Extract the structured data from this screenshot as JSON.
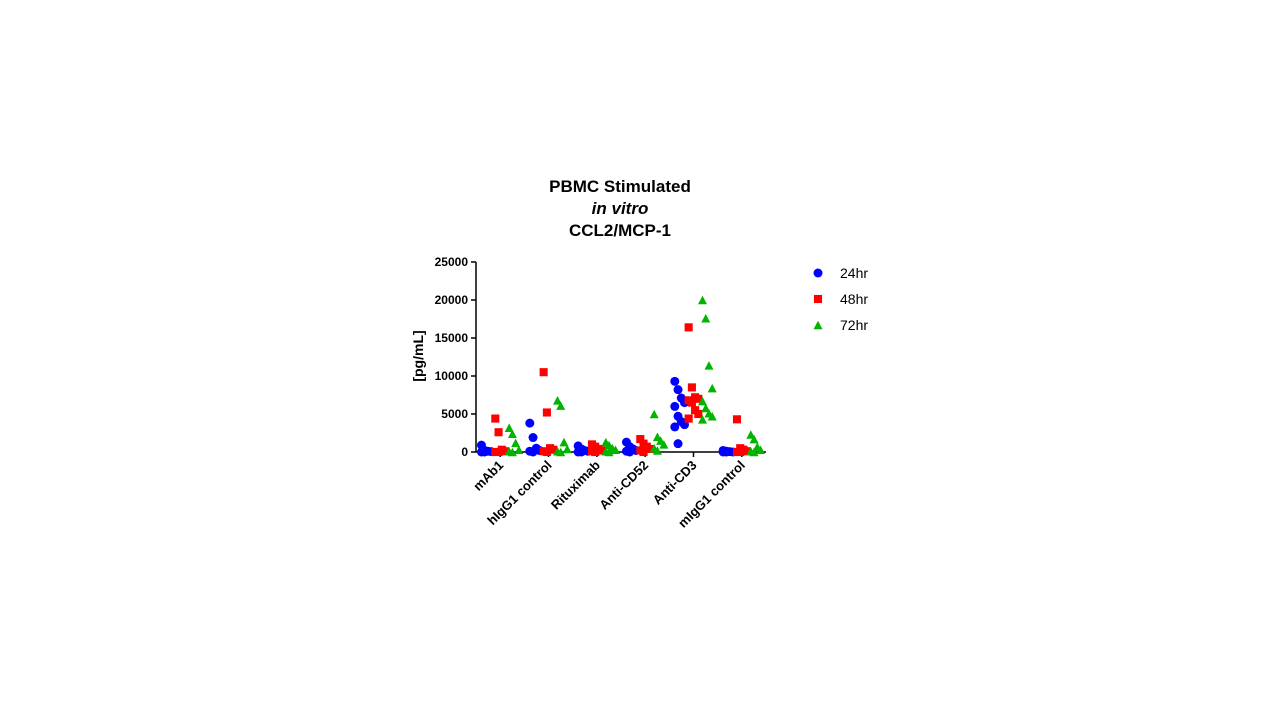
{
  "chart_data": {
    "type": "scatter",
    "title": [
      "PBMC Stimulated",
      "in vitro",
      "CCL2/MCP-1"
    ],
    "ylabel": "[pg/mL]",
    "xlabel": "",
    "ylim": [
      0,
      25000
    ],
    "yticks": [
      0,
      5000,
      10000,
      15000,
      20000,
      25000
    ],
    "ytick_labels": [
      "0",
      "5000",
      "10000",
      "15000",
      "20000",
      "25000"
    ],
    "grid": false,
    "legend_position": "right",
    "categories": [
      "mAb1",
      "hIgG1 control",
      "Rituximab",
      "Anti-CD52",
      "Anti-CD3",
      "mIgG1 control"
    ],
    "series": [
      {
        "name": "24hr",
        "marker": "circle",
        "color": "#0000ff",
        "values": [
          [
            900,
            200,
            100,
            50,
            0,
            0
          ],
          [
            3800,
            1900,
            500,
            200,
            100,
            0
          ],
          [
            800,
            400,
            200,
            100,
            0,
            0
          ],
          [
            1300,
            700,
            400,
            200,
            100,
            0
          ],
          [
            9300,
            8200,
            7100,
            6500,
            6000,
            4700,
            4000,
            3600,
            3300,
            1100
          ],
          [
            200,
            100,
            50,
            0,
            0,
            0
          ]
        ]
      },
      {
        "name": "48hr",
        "marker": "square",
        "color": "#ff0000",
        "values": [
          [
            4400,
            2600,
            300,
            100,
            0,
            0
          ],
          [
            10500,
            5200,
            500,
            300,
            100,
            0
          ],
          [
            1000,
            700,
            400,
            200,
            100,
            0
          ],
          [
            1700,
            1100,
            700,
            400,
            200,
            0
          ],
          [
            16400,
            8500,
            7200,
            7000,
            6800,
            6500,
            5500,
            5000,
            4400
          ],
          [
            4300,
            500,
            300,
            100,
            0,
            0
          ]
        ]
      },
      {
        "name": "72hr",
        "marker": "triangle",
        "color": "#00b400",
        "values": [
          [
            3200,
            2400,
            1200,
            300,
            100,
            0
          ],
          [
            6800,
            6100,
            1300,
            400,
            100,
            0
          ],
          [
            1300,
            900,
            500,
            300,
            100,
            0
          ],
          [
            5000,
            2000,
            1500,
            1000,
            500,
            200
          ],
          [
            20000,
            17600,
            11400,
            8400,
            6700,
            5800,
            5100,
            4700,
            4300
          ],
          [
            2300,
            1700,
            700,
            300,
            100,
            0
          ]
        ]
      }
    ]
  }
}
